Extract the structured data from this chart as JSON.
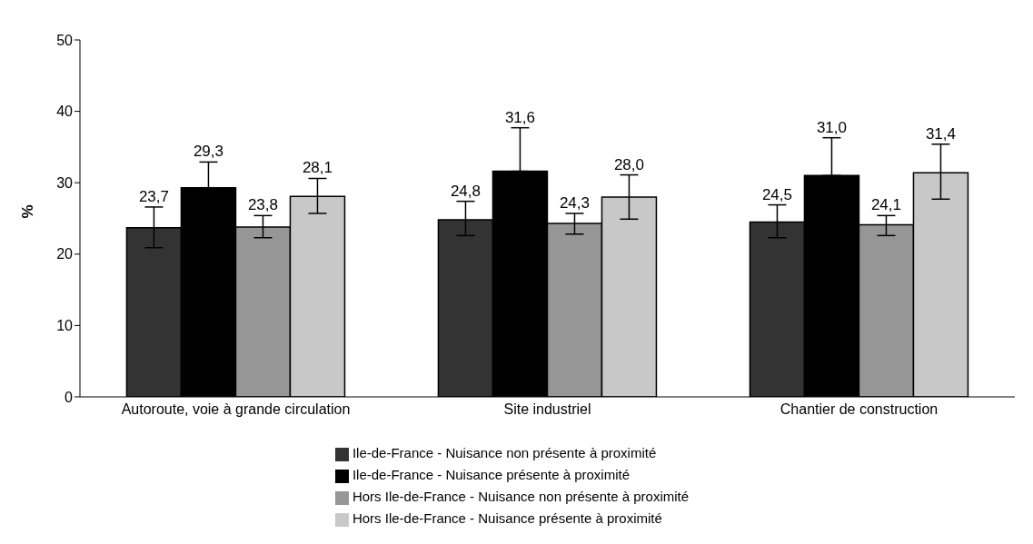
{
  "chart_data": {
    "type": "bar",
    "ylabel": "%",
    "categories": [
      "Autoroute, voie à grande circulation",
      "Site industriel",
      "Chantier de construction"
    ],
    "ylim": [
      0,
      50
    ],
    "yticks": [
      0,
      10,
      20,
      30,
      40,
      50
    ],
    "grid": false,
    "legend": "bottom",
    "series": [
      {
        "name": "Ile-de-France - Nuisance non présente à proximité",
        "color": "#333333",
        "values": [
          23.7,
          24.8,
          24.5
        ],
        "value_labels": [
          "23,7",
          "24,8",
          "24,5"
        ],
        "errors": [
          [
            20.9,
            26.6
          ],
          [
            22.6,
            27.4
          ],
          [
            22.3,
            26.9
          ]
        ]
      },
      {
        "name": "Ile-de-France - Nuisance présente à proximité",
        "color": "#000000",
        "values": [
          29.3,
          31.6,
          31.0
        ],
        "value_labels": [
          "29,3",
          "31,6",
          "31,0"
        ],
        "errors": [
          [
            29.3,
            32.9
          ],
          [
            31.6,
            37.7
          ],
          [
            31.0,
            36.3
          ]
        ]
      },
      {
        "name": "Hors Ile-de-France - Nuisance non présente à proximité",
        "color": "#969696",
        "values": [
          23.8,
          24.3,
          24.1
        ],
        "value_labels": [
          "23,8",
          "24,3",
          "24,1"
        ],
        "errors": [
          [
            22.3,
            25.4
          ],
          [
            22.8,
            25.7
          ],
          [
            22.6,
            25.4
          ]
        ]
      },
      {
        "name": "Hors Ile-de-France - Nuisance présente à proximité",
        "color": "#c8c8c8",
        "values": [
          28.1,
          28.0,
          31.4
        ],
        "value_labels": [
          "28,1",
          "28,0",
          "31,4"
        ],
        "errors": [
          [
            25.7,
            30.6
          ],
          [
            24.9,
            31.1
          ],
          [
            27.7,
            35.4
          ]
        ]
      }
    ]
  }
}
